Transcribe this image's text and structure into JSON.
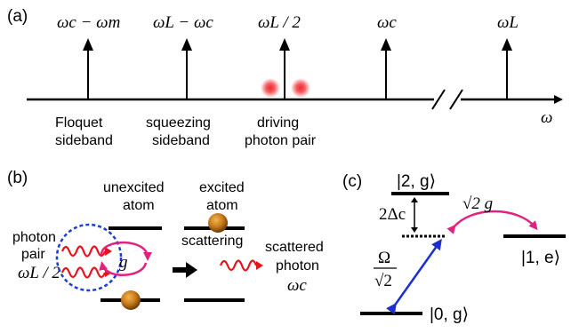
{
  "panel_a": {
    "label": "(a)",
    "freq_labels": [
      "ωc − ωm",
      "ωL − ωc",
      "ωL / 2",
      "ωc",
      "ωL"
    ],
    "axis_symbol": "ω",
    "sideband_labels": [
      [
        "Floquet",
        "sideband"
      ],
      [
        "squeezing",
        "sideband"
      ],
      [
        "driving",
        "photon pair"
      ]
    ]
  },
  "panel_b": {
    "label": "(b)",
    "unexcited_label": [
      "unexcited",
      "atom"
    ],
    "excited_label": [
      "excited",
      "atom"
    ],
    "photon_pair_label": [
      "photon",
      "pair"
    ],
    "photon_pair_freq": "ωL / 2",
    "coupling_symbol": "g",
    "scattering_label": "scattering",
    "scattered_label": [
      "scattered",
      "photon"
    ],
    "scattered_freq": "ωc"
  },
  "panel_c": {
    "label": "(c)",
    "state_2g": "|2, g⟩",
    "state_1e": "|1, e⟩",
    "state_0g": "|0, g⟩",
    "detuning": "2Δc",
    "coupling": "√2 g",
    "rabi_num": "Ω",
    "rabi_den": "√2"
  },
  "colors": {
    "ink": "#000000",
    "photon_red": "#e8121a",
    "glow_red": "#f0282e",
    "dashed_blue": "#1a3fd6",
    "coupling_magenta": "#e2227e",
    "drive_blue": "#1e2fcf",
    "atom_orange": "#c87a18"
  }
}
